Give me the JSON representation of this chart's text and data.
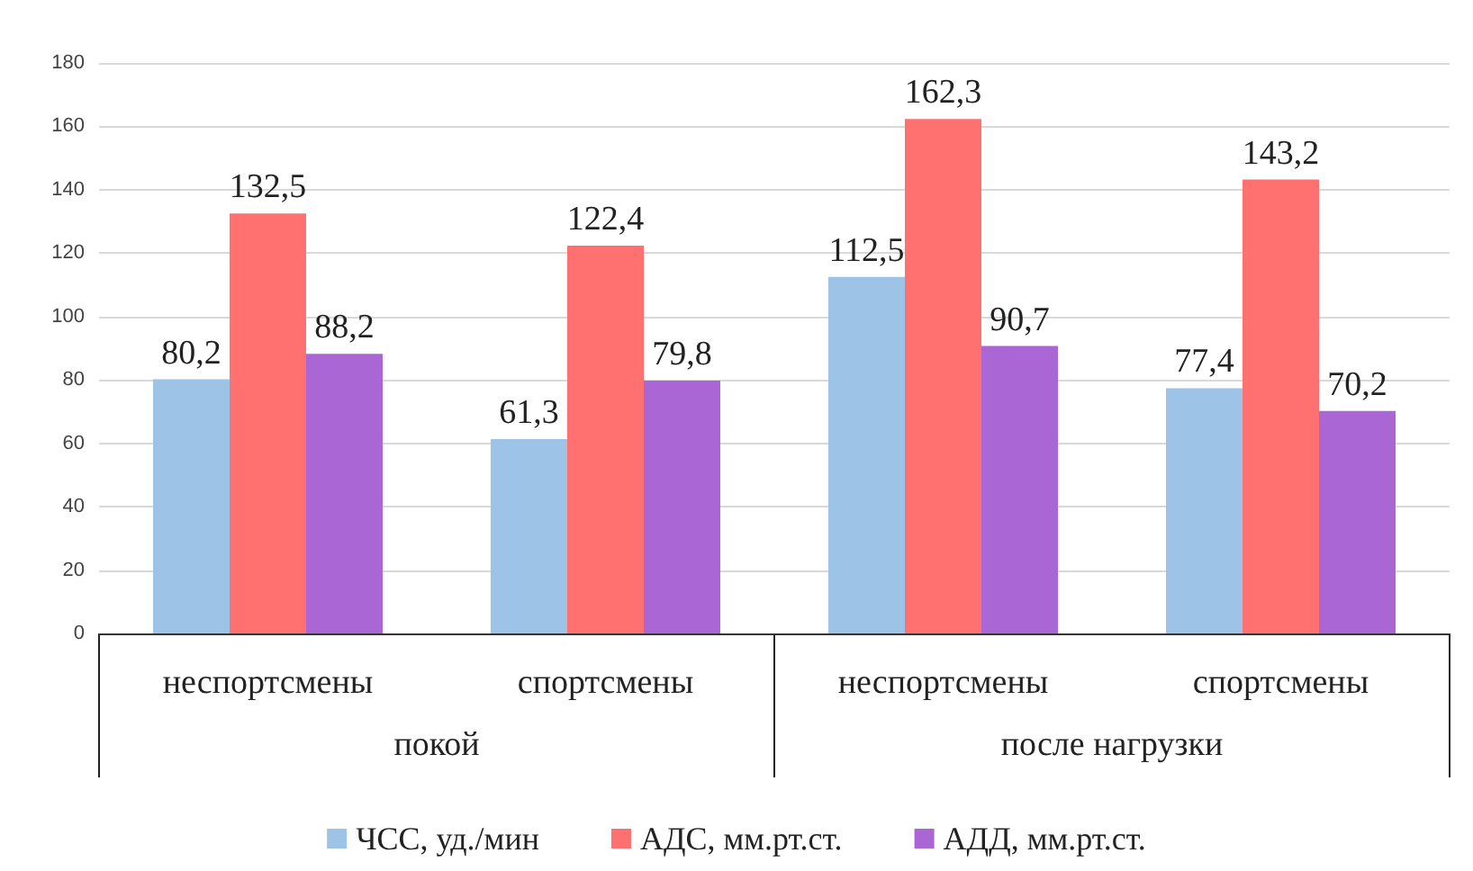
{
  "chart_data": {
    "type": "bar",
    "categories": [
      "неспортсмены",
      "спортсмены",
      "неспортсмены",
      "спортсмены"
    ],
    "series": [
      {
        "name": "ЧСС, уд./мин",
        "color": "#9dc3e6",
        "values": [
          80.2,
          61.3,
          112.5,
          77.4
        ],
        "value_labels": [
          "80,2",
          "61,3",
          "112,5",
          "77,4"
        ]
      },
      {
        "name": "АДС, мм.рт.ст.",
        "color": "#ff7070",
        "values": [
          132.5,
          122.4,
          162.3,
          143.2
        ],
        "value_labels": [
          "132,5",
          "122,4",
          "162,3",
          "143,2"
        ]
      },
      {
        "name": "АДД, мм.рт.ст.",
        "color": "#a966d4",
        "values": [
          88.2,
          79.8,
          90.7,
          70.2
        ],
        "value_labels": [
          "88,2",
          "79,8",
          "90,7",
          "70,2"
        ]
      }
    ],
    "annotations": [
      "покой",
      "после нагрузки"
    ],
    "ylim": [
      0,
      180
    ],
    "yticks": [
      0,
      20,
      40,
      60,
      80,
      100,
      120,
      140,
      160,
      180
    ],
    "grid": "y",
    "legend": "bottom"
  }
}
